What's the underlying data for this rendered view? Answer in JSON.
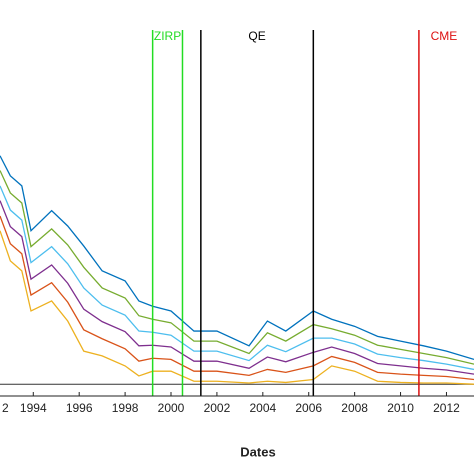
{
  "chart_data": {
    "type": "line",
    "x_label": "Dates",
    "x": [
      1992.55,
      1993.0,
      1993.5,
      1993.9,
      1994.8,
      1995.5,
      1996.2,
      1997,
      1998,
      1998.6,
      1999.2,
      2000,
      2001,
      2002,
      2003.4,
      2004.2,
      2005,
      2006.2,
      2007,
      2008,
      2009,
      2010,
      2011,
      2012,
      2013.2
    ],
    "xlim": [
      1992.55,
      2013.2
    ],
    "xticks": [
      {
        "value": 1992,
        "label": "2"
      },
      1994,
      1996,
      1998,
      2000,
      2002,
      2004,
      2006,
      2008,
      2010,
      2012
    ],
    "ylim": [
      -0.2,
      6
    ],
    "zero_line": 0,
    "series": [
      {
        "color": "#0072BD",
        "values": [
          3.87,
          3.53,
          3.36,
          2.6,
          2.94,
          2.68,
          2.34,
          1.92,
          1.75,
          1.41,
          1.32,
          1.24,
          0.9,
          0.9,
          0.65,
          1.07,
          0.9,
          1.24,
          1.1,
          0.98,
          0.81,
          0.73,
          0.65,
          0.56,
          0.42
        ]
      },
      {
        "color": "#77AC30",
        "values": [
          3.62,
          3.24,
          3.07,
          2.33,
          2.63,
          2.36,
          1.98,
          1.63,
          1.46,
          1.16,
          1.1,
          1.04,
          0.73,
          0.73,
          0.52,
          0.87,
          0.73,
          1.01,
          0.94,
          0.83,
          0.66,
          0.59,
          0.52,
          0.45,
          0.34
        ]
      },
      {
        "color": "#4DBEEE",
        "values": [
          3.36,
          2.95,
          2.78,
          2.06,
          2.33,
          2.04,
          1.63,
          1.34,
          1.17,
          0.9,
          0.88,
          0.83,
          0.56,
          0.56,
          0.4,
          0.66,
          0.55,
          0.78,
          0.78,
          0.68,
          0.51,
          0.45,
          0.4,
          0.34,
          0.25
        ]
      },
      {
        "color": "#7E2F8E",
        "values": [
          3.11,
          2.67,
          2.5,
          1.78,
          2.02,
          1.71,
          1.27,
          1.06,
          0.89,
          0.65,
          0.66,
          0.63,
          0.39,
          0.39,
          0.27,
          0.46,
          0.38,
          0.54,
          0.63,
          0.52,
          0.35,
          0.31,
          0.27,
          0.24,
          0.17
        ]
      },
      {
        "color": "#D95319",
        "values": [
          2.85,
          2.38,
          2.21,
          1.51,
          1.72,
          1.39,
          0.92,
          0.77,
          0.6,
          0.39,
          0.44,
          0.42,
          0.22,
          0.22,
          0.15,
          0.25,
          0.2,
          0.31,
          0.47,
          0.37,
          0.2,
          0.17,
          0.15,
          0.13,
          0.08
        ]
      },
      {
        "color": "#EDB120",
        "values": [
          2.6,
          2.09,
          1.92,
          1.24,
          1.41,
          1.07,
          0.56,
          0.48,
          0.31,
          0.14,
          0.22,
          0.22,
          0.05,
          0.05,
          0.02,
          0.05,
          0.03,
          0.08,
          0.31,
          0.22,
          0.05,
          0.03,
          0.02,
          0.02,
          0
        ]
      }
    ],
    "events": [
      {
        "label": "ZIRP",
        "x": [
          1999.2,
          2000.5
        ],
        "color": "#22dd22"
      },
      {
        "label": "QE",
        "x": [
          2001.3,
          2006.2
        ],
        "color": "#000000"
      },
      {
        "label": "CME",
        "x": [
          2010.8
        ],
        "color": "#dd1111"
      }
    ]
  }
}
